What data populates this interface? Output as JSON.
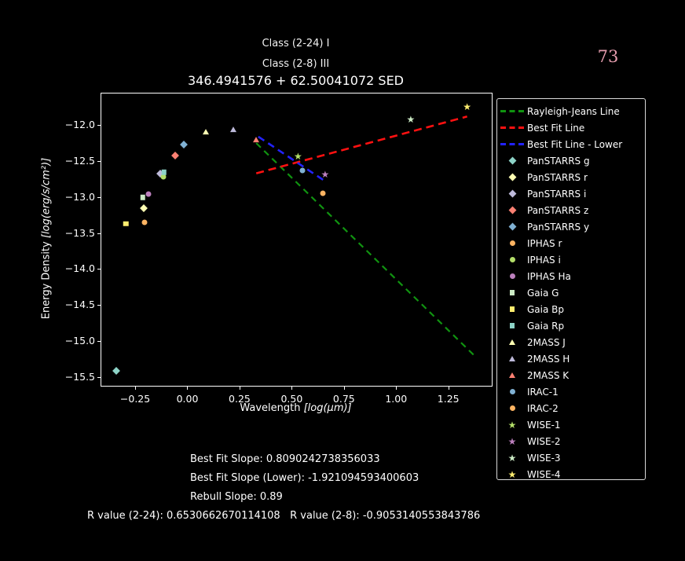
{
  "page": {
    "number": "73",
    "number_color": "#e59cad",
    "background": "#000000"
  },
  "titles": {
    "class_2_24": "Class (2-24) I",
    "class_2_8": "Class (2-8) III",
    "main": "346.4941576 + 62.50041072 SED"
  },
  "axes": {
    "xlabel_prefix": "Wavelength ",
    "xlabel_math": "[log(μm)]",
    "ylabel_prefix": "Energy Density ",
    "ylabel_math": "[log(erg/s/cm²)]"
  },
  "chart_data": {
    "type": "scatter",
    "title": "346.4941576 + 62.50041072 SED",
    "xlabel": "Wavelength [log(μm)]",
    "ylabel": "Energy Density [log(erg/s/cm²)]",
    "xlim": [
      -0.412,
      1.458
    ],
    "ylim": [
      -15.625,
      -11.56
    ],
    "grid": false,
    "legend_position": "outside-right",
    "x_ticks": [
      -0.25,
      0.0,
      0.25,
      0.5,
      0.75,
      1.0,
      1.25
    ],
    "x_tick_labels": [
      "−0.25",
      "0.00",
      "0.25",
      "0.50",
      "0.75",
      "1.00",
      "1.25"
    ],
    "y_ticks": [
      -12.0,
      -12.5,
      -13.0,
      -13.5,
      -14.0,
      -14.5,
      -15.0,
      -15.5
    ],
    "y_tick_labels": [
      "−12.0",
      "−12.5",
      "−13.0",
      "−13.5",
      "−14.0",
      "−14.5",
      "−15.0",
      "−15.5"
    ],
    "lines": [
      {
        "name": "Rayleigh-Jeans Line",
        "color": "#109310",
        "style": "dashed",
        "width": 2.2,
        "dash": "8 6",
        "points": [
          [
            0.33,
            -12.25
          ],
          [
            1.38,
            -15.22
          ]
        ]
      },
      {
        "name": "Best Fit Line",
        "color": "#ff1111",
        "style": "dashed",
        "width": 2.6,
        "dash": "10 6",
        "points": [
          [
            0.33,
            -12.67
          ],
          [
            1.34,
            -11.88
          ]
        ]
      },
      {
        "name": "Best Fit Line - Lower",
        "color": "#2222ff",
        "style": "dashed",
        "width": 2.6,
        "dash": "9 6",
        "points": [
          [
            0.34,
            -12.16
          ],
          [
            0.66,
            -12.78
          ]
        ]
      }
    ],
    "points": [
      {
        "name": "PanSTARRS g",
        "shape": "diamond",
        "color": "#8dd3c7",
        "x": -0.34,
        "y": -15.42
      },
      {
        "name": "PanSTARRS r",
        "shape": "diamond",
        "color": "#ffffb3",
        "x": -0.21,
        "y": -13.16
      },
      {
        "name": "PanSTARRS i",
        "shape": "diamond",
        "color": "#bebada",
        "x": -0.129,
        "y": -12.67
      },
      {
        "name": "PanSTARRS z",
        "shape": "diamond",
        "color": "#fb8072",
        "x": -0.06,
        "y": -12.42
      },
      {
        "name": "PanSTARRS y",
        "shape": "diamond",
        "color": "#80b1d3",
        "x": -0.016,
        "y": -12.27
      },
      {
        "name": "IPHAS r",
        "shape": "circle",
        "color": "#fdb462",
        "x": -0.205,
        "y": -13.35
      },
      {
        "name": "IPHAS i",
        "shape": "circle",
        "color": "#b3de69",
        "x": -0.115,
        "y": -12.72
      },
      {
        "name": "IPHAS Ha",
        "shape": "circle",
        "color": "#bc80bd",
        "x": -0.185,
        "y": -12.96
      },
      {
        "name": "Gaia G",
        "shape": "square",
        "color": "#ccebc5",
        "x": -0.213,
        "y": -13.005
      },
      {
        "name": "Gaia Bp",
        "shape": "square",
        "color": "#ffed6f",
        "x": -0.295,
        "y": -13.37
      },
      {
        "name": "Gaia Rp",
        "shape": "square",
        "color": "#8dd3c7",
        "x": -0.112,
        "y": -12.655
      },
      {
        "name": "2MASS J",
        "shape": "triangle",
        "color": "#ffffb3",
        "x": 0.09,
        "y": -12.09
      },
      {
        "name": "2MASS H",
        "shape": "triangle",
        "color": "#bebada",
        "x": 0.22,
        "y": -12.06
      },
      {
        "name": "2MASS K",
        "shape": "triangle",
        "color": "#fb8072",
        "x": 0.33,
        "y": -12.2
      },
      {
        "name": "IRAC-1",
        "shape": "circle",
        "color": "#80b1d3",
        "x": 0.55,
        "y": -12.63
      },
      {
        "name": "IRAC-2",
        "shape": "circle",
        "color": "#fdb462",
        "x": 0.65,
        "y": -12.95
      },
      {
        "name": "WISE-1",
        "shape": "star",
        "color": "#b3de69",
        "x": 0.53,
        "y": -12.43
      },
      {
        "name": "WISE-2",
        "shape": "star",
        "color": "#bc80bd",
        "x": 0.66,
        "y": -12.69
      },
      {
        "name": "WISE-3",
        "shape": "star",
        "color": "#ccebc5",
        "x": 1.07,
        "y": -11.92
      },
      {
        "name": "WISE-4",
        "shape": "star",
        "color": "#ffed6f",
        "x": 1.34,
        "y": -11.75
      }
    ]
  },
  "legend": {
    "entries": [
      {
        "label": "Rayleigh-Jeans Line",
        "kind": "dash",
        "color": "#109310"
      },
      {
        "label": "Best Fit Line",
        "kind": "dash",
        "color": "#ff1111"
      },
      {
        "label": "Best Fit Line - Lower",
        "kind": "dash",
        "color": "#2222ff"
      },
      {
        "label": "PanSTARRS g",
        "kind": "diamond",
        "color": "#8dd3c7"
      },
      {
        "label": "PanSTARRS r",
        "kind": "diamond",
        "color": "#ffffb3"
      },
      {
        "label": "PanSTARRS i",
        "kind": "diamond",
        "color": "#bebada"
      },
      {
        "label": "PanSTARRS z",
        "kind": "diamond",
        "color": "#fb8072"
      },
      {
        "label": "PanSTARRS y",
        "kind": "diamond",
        "color": "#80b1d3"
      },
      {
        "label": "IPHAS r",
        "kind": "circle",
        "color": "#fdb462"
      },
      {
        "label": "IPHAS i",
        "kind": "circle",
        "color": "#b3de69"
      },
      {
        "label": "IPHAS Ha",
        "kind": "circle",
        "color": "#bc80bd"
      },
      {
        "label": "Gaia G",
        "kind": "square",
        "color": "#ccebc5"
      },
      {
        "label": "Gaia Bp",
        "kind": "square",
        "color": "#ffed6f"
      },
      {
        "label": "Gaia Rp",
        "kind": "square",
        "color": "#8dd3c7"
      },
      {
        "label": "2MASS J",
        "kind": "triangle",
        "color": "#ffffb3"
      },
      {
        "label": "2MASS H",
        "kind": "triangle",
        "color": "#bebada"
      },
      {
        "label": "2MASS K",
        "kind": "triangle",
        "color": "#fb8072"
      },
      {
        "label": "IRAC-1",
        "kind": "circle",
        "color": "#80b1d3"
      },
      {
        "label": "IRAC-2",
        "kind": "circle",
        "color": "#fdb462"
      },
      {
        "label": "WISE-1",
        "kind": "star",
        "color": "#b3de69"
      },
      {
        "label": "WISE-2",
        "kind": "star",
        "color": "#bc80bd"
      },
      {
        "label": "WISE-3",
        "kind": "star",
        "color": "#ccebc5"
      },
      {
        "label": "WISE-4",
        "kind": "star",
        "color": "#ffed6f"
      }
    ]
  },
  "stats": {
    "best_fit_slope": "Best Fit Slope: 0.8090242738356033",
    "best_fit_slope_lower": "Best Fit Slope (Lower): -1.921094593400603",
    "rebull_slope": "Rebull Slope: 0.89",
    "r_value_2_24": "R value (2-24): 0.6530662670114108",
    "r_value_2_8": "R value (2-8): -0.9053140553843786"
  }
}
